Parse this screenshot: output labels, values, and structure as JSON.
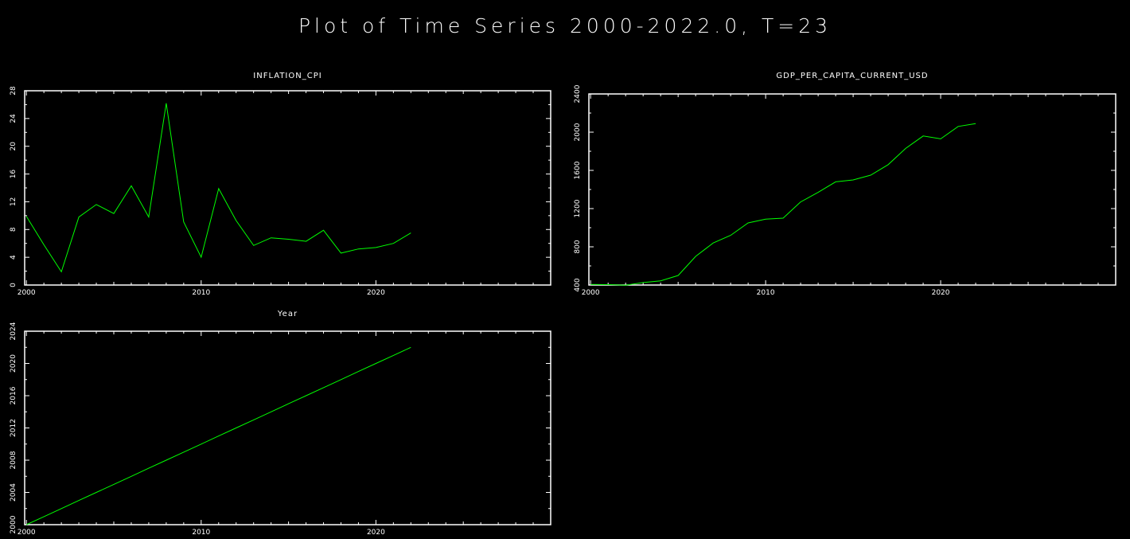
{
  "title": "Plot of Time Series 2000-2022.0, T=23",
  "colors": {
    "background": "#000000",
    "axes": "#ffffff",
    "series": "#00ff00"
  },
  "chart_data": [
    {
      "type": "line",
      "title": "INFLATION_CPI",
      "x": [
        2000,
        2001,
        2002,
        2003,
        2004,
        2005,
        2006,
        2007,
        2008,
        2009,
        2010,
        2011,
        2012,
        2013,
        2014,
        2015,
        2016,
        2017,
        2018,
        2019,
        2020,
        2021,
        2022
      ],
      "xlim": [
        1999.9,
        2030
      ],
      "x_ticks": [
        2000,
        2010,
        2020
      ],
      "ylim": [
        0,
        28
      ],
      "y_ticks": [
        0,
        4,
        8,
        12,
        16,
        20,
        24,
        28
      ],
      "series": [
        {
          "values": [
            9.9,
            5.8,
            1.9,
            9.8,
            11.6,
            10.3,
            14.3,
            9.8,
            26.2,
            9.1,
            4.0,
            13.9,
            9.3,
            5.7,
            6.8,
            6.6,
            6.3,
            7.9,
            4.6,
            5.2,
            5.4,
            6.0,
            7.5
          ]
        }
      ],
      "grid": false
    },
    {
      "type": "line",
      "title": "GDP_PER_CAPITA_CURRENT_USD",
      "x": [
        2000,
        2001,
        2002,
        2003,
        2004,
        2005,
        2006,
        2007,
        2008,
        2009,
        2010,
        2011,
        2012,
        2013,
        2014,
        2015,
        2016,
        2017,
        2018,
        2019,
        2020,
        2021,
        2022
      ],
      "xlim": [
        1999.9,
        2030
      ],
      "x_ticks": [
        2000,
        2010,
        2020
      ],
      "ylim": [
        400,
        2400
      ],
      "y_ticks": [
        400,
        800,
        1200,
        1600,
        2000,
        2400
      ],
      "series": [
        {
          "values": [
            406,
            404,
            398,
            426,
            444,
            500,
            700,
            840,
            920,
            1050,
            1090,
            1100,
            1270,
            1370,
            1480,
            1500,
            1550,
            1660,
            1830,
            1960,
            1930,
            2060,
            2090
          ]
        }
      ],
      "grid": false
    },
    {
      "type": "line",
      "title": "Year",
      "x": [
        2000,
        2001,
        2002,
        2003,
        2004,
        2005,
        2006,
        2007,
        2008,
        2009,
        2010,
        2011,
        2012,
        2013,
        2014,
        2015,
        2016,
        2017,
        2018,
        2019,
        2020,
        2021,
        2022
      ],
      "xlim": [
        1999.9,
        2030
      ],
      "x_ticks": [
        2000,
        2010,
        2020
      ],
      "ylim": [
        2000,
        2024
      ],
      "y_ticks": [
        2000,
        2004,
        2008,
        2012,
        2016,
        2020,
        2024
      ],
      "series": [
        {
          "values": [
            2000,
            2001,
            2002,
            2003,
            2004,
            2005,
            2006,
            2007,
            2008,
            2009,
            2010,
            2011,
            2012,
            2013,
            2014,
            2015,
            2016,
            2017,
            2018,
            2019,
            2020,
            2021,
            2022
          ]
        }
      ],
      "grid": false
    }
  ]
}
